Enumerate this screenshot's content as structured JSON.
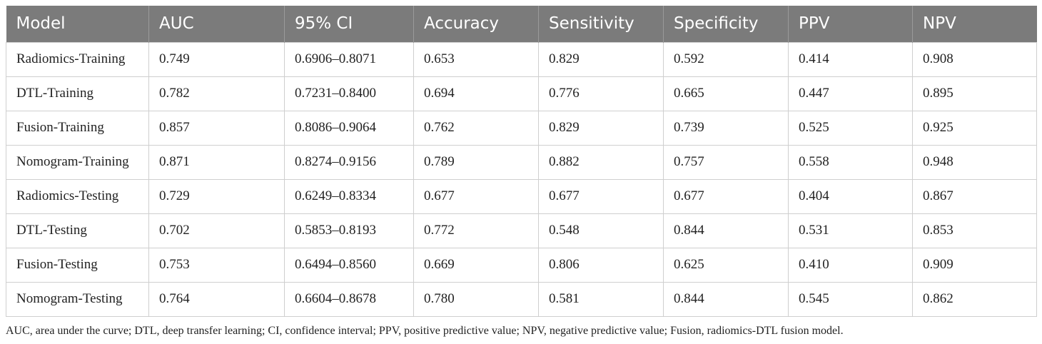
{
  "table": {
    "header": [
      "Model",
      "AUC",
      "95% CI",
      "Accuracy",
      "Sensitivity",
      "Specificity",
      "PPV",
      "NPV"
    ],
    "rows": [
      [
        "Radiomics-Training",
        "0.749",
        "0.6906–0.8071",
        "0.653",
        "0.829",
        "0.592",
        "0.414",
        "0.908"
      ],
      [
        "DTL-Training",
        "0.782",
        "0.7231–0.8400",
        "0.694",
        "0.776",
        "0.665",
        "0.447",
        "0.895"
      ],
      [
        "Fusion-Training",
        "0.857",
        "0.8086–0.9064",
        "0.762",
        "0.829",
        "0.739",
        "0.525",
        "0.925"
      ],
      [
        "Nomogram-Training",
        "0.871",
        "0.8274–0.9156",
        "0.789",
        "0.882",
        "0.757",
        "0.558",
        "0.948"
      ],
      [
        "Radiomics-Testing",
        "0.729",
        "0.6249–0.8334",
        "0.677",
        "0.677",
        "0.677",
        "0.404",
        "0.867"
      ],
      [
        "DTL-Testing",
        "0.702",
        "0.5853–0.8193",
        "0.772",
        "0.548",
        "0.844",
        "0.531",
        "0.853"
      ],
      [
        "Fusion-Testing",
        "0.753",
        "0.6494–0.8560",
        "0.669",
        "0.806",
        "0.625",
        "0.410",
        "0.909"
      ],
      [
        "Nomogram-Testing",
        "0.764",
        "0.6604–0.8678",
        "0.780",
        "0.581",
        "0.844",
        "0.545",
        "0.862"
      ]
    ]
  },
  "footnote": "AUC, area under the curve; DTL, deep transfer learning; CI, confidence interval; PPV, positive predictive value; NPV, negative predictive value; Fusion, radiomics-DTL fusion model."
}
